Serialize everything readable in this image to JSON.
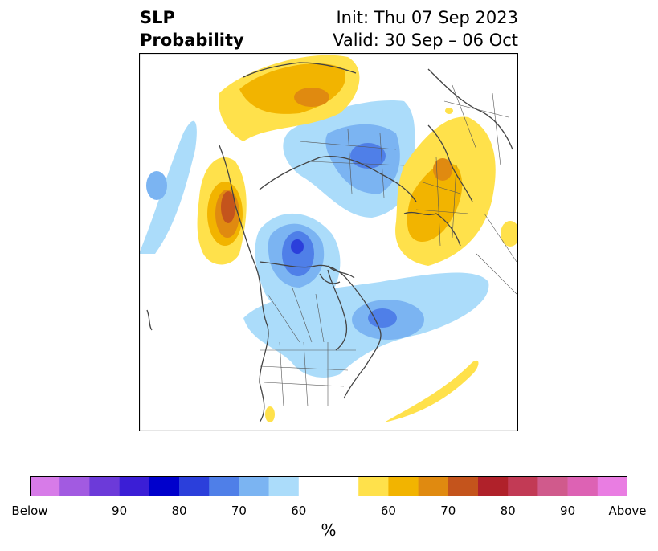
{
  "title": {
    "line1": "SLP",
    "line2": "Probability"
  },
  "info": {
    "init": "Init: Thu 07 Sep 2023",
    "valid": "Valid: 30 Sep – 06 Oct"
  },
  "colorbar": {
    "colors": [
      "#d77be8",
      "#a25ae1",
      "#6c3ad9",
      "#3b1ed6",
      "#0000cc",
      "#2b3fdb",
      "#4f7fe8",
      "#7bb4f2",
      "#abdcfa",
      "#ffffff",
      "#ffe14b",
      "#f2b400",
      "#e08a10",
      "#c4541c",
      "#b0212a",
      "#c23a55",
      "#d05a8c",
      "#dd62b4",
      "#e97de2"
    ],
    "labels": [
      "Below",
      "90",
      "80",
      "70",
      "60",
      "60",
      "70",
      "80",
      "90",
      "Above"
    ],
    "unit": "%"
  },
  "palette": {
    "blue_light": "#abdcfa",
    "blue_mid": "#7bb4f2",
    "blue_dark": "#4f7fe8",
    "blue_deep": "#2b3fdb",
    "yellow": "#ffe14b",
    "gold": "#f2b400",
    "orange": "#e08a10",
    "rust": "#c4541c"
  }
}
